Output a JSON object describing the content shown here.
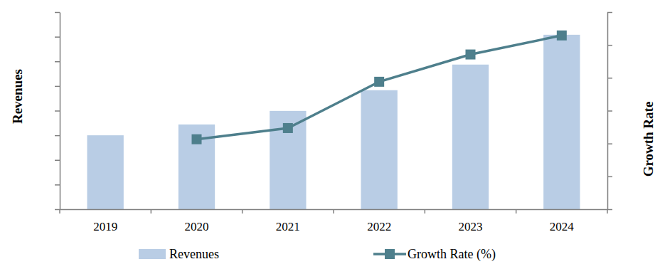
{
  "chart_data": {
    "type": "bar",
    "categories": [
      "2019",
      "2020",
      "2021",
      "2022",
      "2023",
      "2024"
    ],
    "series": [
      {
        "name": "Revenues",
        "type": "bar",
        "color": "#b9cde5",
        "values": [
          3.0,
          3.44,
          3.99,
          4.83,
          5.87,
          7.08
        ]
      },
      {
        "name": "Growth Rate (%)",
        "type": "line",
        "color": "#4e7f8c",
        "marker": "square",
        "axis": "y2",
        "values": [
          null,
          2.13,
          2.47,
          3.88,
          4.71,
          5.29
        ]
      }
    ],
    "y_label": "Revenues",
    "y2_label": "Growth Rate",
    "ylim": [
      0,
      8
    ],
    "yticks": [
      0,
      1,
      2,
      3,
      4,
      5,
      6,
      7,
      8
    ],
    "y2lim": [
      0,
      6
    ],
    "y2ticks": [
      0,
      1,
      2,
      3,
      4,
      5,
      6
    ],
    "tick_labels": "x",
    "legend": "bottom",
    "grid": false
  }
}
